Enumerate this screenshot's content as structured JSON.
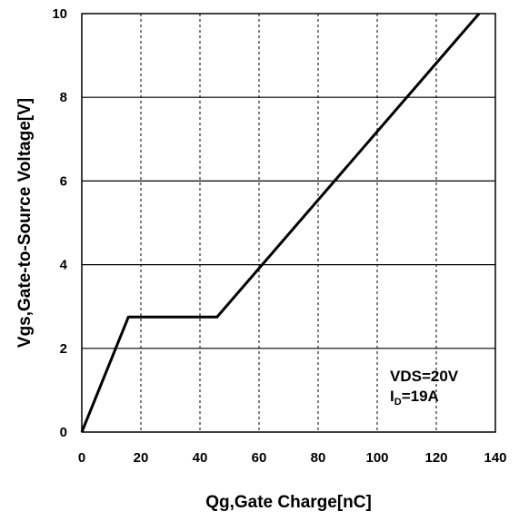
{
  "chart_data": {
    "type": "line",
    "xlabel": "Qg,Gate Charge[nC]",
    "ylabel": "Vgs,Gate-to-Source Voltage[V]",
    "xlim": [
      0,
      140
    ],
    "ylim": [
      0,
      10
    ],
    "x_ticks": [
      "0",
      "20",
      "40",
      "60",
      "80",
      "100",
      "120",
      "140"
    ],
    "y_ticks": [
      "0",
      "2",
      "4",
      "6",
      "8",
      "10"
    ],
    "grid": {
      "vertical": "dashed",
      "horizontal": "solid"
    },
    "series": [
      {
        "color": "#000000",
        "x": [
          0,
          15.8,
          45.8,
          134.5
        ],
        "y": [
          0,
          2.75,
          2.75,
          10.0
        ]
      }
    ],
    "annotations": {
      "vds": "VDS=20V",
      "id_prefix": "I",
      "id_sub": "D",
      "id_value": "=19A"
    }
  }
}
